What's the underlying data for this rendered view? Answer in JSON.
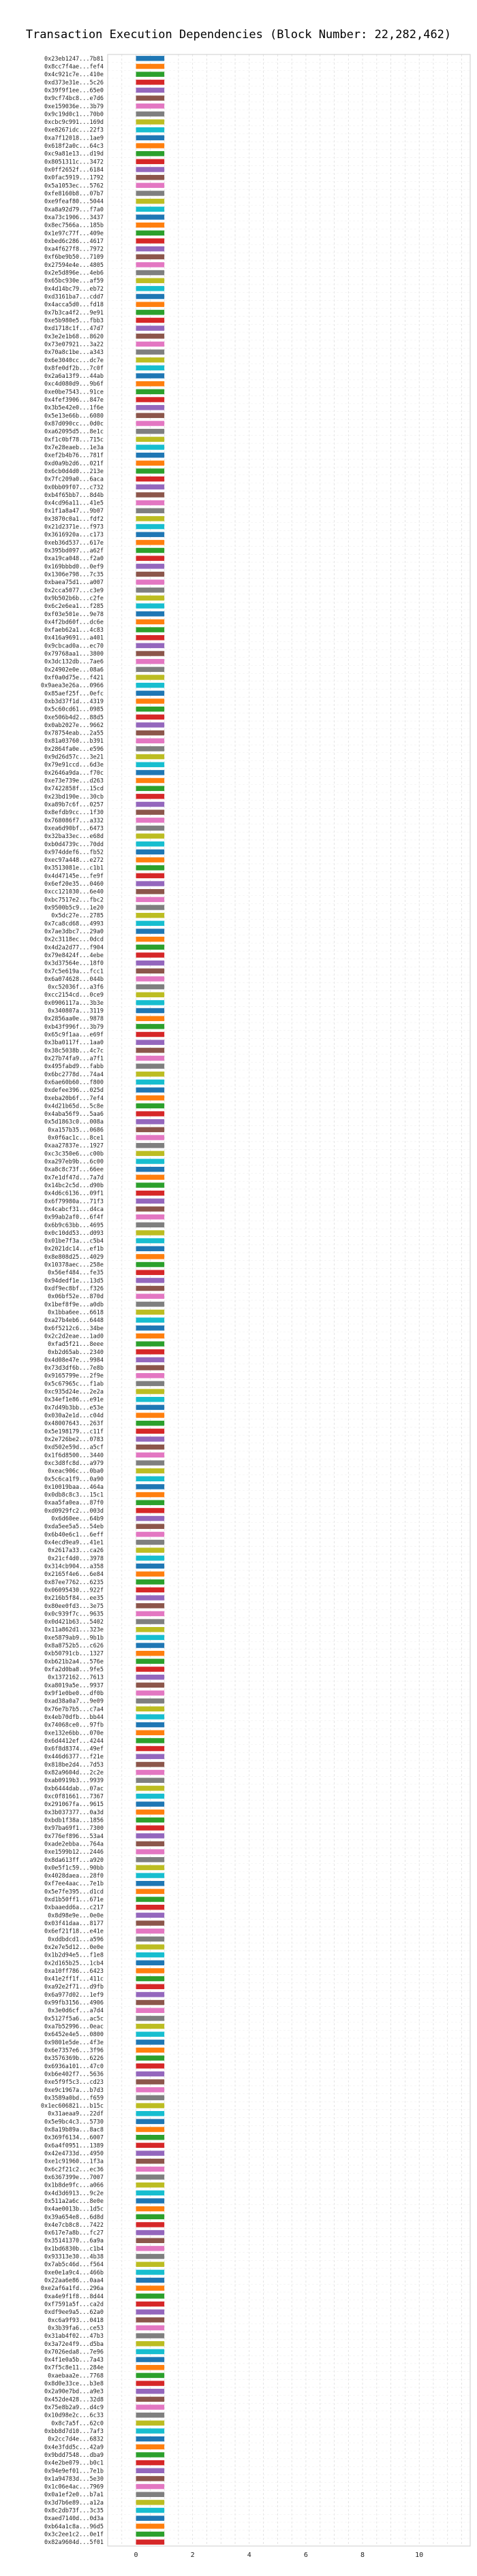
{
  "chart_data": {
    "type": "bar",
    "orientation": "horizontal",
    "stacked": false,
    "title": "Transaction Execution Dependencies (Block Number: 22,282,462)",
    "xlabel": "",
    "ylabel": "",
    "xlim": [
      -1,
      11.8
    ],
    "xticks": [
      0,
      2,
      4,
      6,
      8,
      10
    ],
    "grid": true,
    "legend": "none",
    "colors": [
      "#1f77b4",
      "#ff7f0e",
      "#2ca02c",
      "#d62728",
      "#9467bd",
      "#8c564b",
      "#e377c2",
      "#7f7f7f",
      "#bcbd22",
      "#17becf"
    ],
    "categories": [
      "0x23eb1247...7b81",
      "0x8cc7f4ae...fef4",
      "0x4c921c7e...410e",
      "0xd373e31e...5c26",
      "0x39f9f1ee...65e0",
      "0x9cf74bc8...e7d6",
      "0xe159036e...3b79",
      "0x9c19d0c1...70b0",
      "0xcbc9c991...169d",
      "0xe8267idc...22f3",
      "0xa7f12018...1ae9",
      "0x618f2a0c...64c3",
      "0xc9a81e13...d19d",
      "0x8051311c...3472",
      "0x0ff2652f...6184",
      "0x0fac5919...1792",
      "0x5a1053ec...5762",
      "0xfe8160b8...07b7",
      "0xe9feaf80...5044",
      "0xa8a92d79...f7a0",
      "0xa73c1906...3437",
      "0x8ec7566a...185b",
      "0x1e97c77f...409e",
      "0xbed6c286...4617",
      "0xa4f627f8...7972",
      "0xf6be9b50...7109",
      "0x27594e4e...4805",
      "0x2e5d896e...4eb6",
      "0x65bc930e...af59",
      "0x4d14bc79...eb72",
      "0xd3161ba7...cdd7",
      "0x4acca5d0...fd18",
      "0x7b3ca4f2...9e91",
      "0xe5b980e5...fbb3",
      "0xd1718c1f...47d7",
      "0x3e2e1b68...8620",
      "0x73e07921...3a22",
      "0x70a8c1be...a343",
      "0x6e3040cc...dc7e",
      "0x8fe0df2b...7c0f",
      "0x2a6a13f9...44ab",
      "0xc4d080d9...9b6f",
      "0xe0be7543...91ce",
      "0x4fef3906...847e",
      "0x3b5e42e0...1f6e",
      "0x5e13e66b...6080",
      "0x87d090cc...0d0c",
      "0xa62095d5...8e1c",
      "0xf1c0bf78...715c",
      "0x7e28eaeb...1e3a",
      "0xef2b4b76...781f",
      "0xd0a9b2d6...021f",
      "0x6cb0d4d0...213e",
      "0x7fc209a0...6aca",
      "0x0bb09f07...c732",
      "0xb4f65bb7...8d4b",
      "0x4cd96a11...41e5",
      "0x1f1a8a47...9b07",
      "0x3870c0a1...fdf2",
      "0x21d2371e...f973",
      "0x3616920a...c173",
      "0xeb36d537...617e",
      "0x395bd097...a62f",
      "0xa19ca048...f2a0",
      "0x169bbbd0...0ef9",
      "0x1306e798...7c35",
      "0xbaea75d1...a007",
      "0x2cca5077...c3e9",
      "0x9b502b6b...c2fe",
      "0x6c2e6ea1...f285",
      "0xf03e501e...9e78",
      "0x4f2bd60f...dc6e",
      "0xfaeb62a1...4c83",
      "0x416a9691...a401",
      "0x9cbcad0a...ec70",
      "0x79768aa1...3800",
      "0x3dc132db...7ae6",
      "0x24902e0e...08a6",
      "0xf0a0d75e...f421",
      "0x9aea3e26a...0966",
      "0x85aef25f...0efc",
      "0xb3d37f1d...4319",
      "0x5c60cd61...0985",
      "0xe506b4d2...88d5",
      "0x0ab2027e...9662",
      "0x78754eab...2a55",
      "0x81a03760...b391",
      "0x2864fa0e...e596",
      "0x9d26d57c...3e21",
      "0x79e91ccd...6d3e",
      "0x2646a9da...f70c",
      "0xe73e739e...d263",
      "0x7422858f...15cd",
      "0x23bd190e...30cb",
      "0xa89b7c6f...0257",
      "0x8efdb9cc...1f30",
      "0x768086f7...a332",
      "0xea6d90bf...6473",
      "0x32ba33ec...e68d",
      "0xb0d4739c...70dd",
      "0x974ddef6...fb52",
      "0xec97a448...e272",
      "0x3513081e...c1b1",
      "0x4d47145e...fe9f",
      "0x6ef20e35...0460",
      "0xcc121030...6e40",
      "0xbc7517e2...fbc2",
      "0x9500b5c9...1e20",
      "0x5dc27e...2785",
      "0x7ca8cd68...4993",
      "0x7ae3dbc7...29a0",
      "0x2c3118ec...0dcd",
      "0x4d2a2d77...f904",
      "0x79e8424f...4ebe",
      "0x3d37564e...18f0",
      "0x7c5e619a...fcc1",
      "0x6a074628...044b",
      "0xc52036f...a3f6",
      "0xcc2154cd...0ce9",
      "0x0906117a...3b3e",
      "0x340807a...3119",
      "0x2856aa0e...9878",
      "0xb43f996f...3b79",
      "0x65c9f1aa...e69f",
      "0x3ba0117f...1aa0",
      "0x38c5038b...4c7c",
      "0x27b74fa9...a7f1",
      "0x495fabd9...fabb",
      "0x6bc2778d...74a4",
      "0x6ae60b60...f800",
      "0xdefee396...025d",
      "0xeba20b6f...7ef4",
      "0x4d21b65d...5c8e",
      "0x4aba56f9...5aa6",
      "0x5d1863c0...008a",
      "0xa157b35...0686",
      "0x0f6ac1c...8ce1",
      "0xaa27837e...1927",
      "0xc3c350e6...c00b",
      "0xa297eb9b...6c00",
      "0xa8c8c73f...66ee",
      "0x7e1df47d...7a7d",
      "0x14bc2c5d...d90b",
      "0x4d6c6136...09f1",
      "0x6f79980a...71f3",
      "0x4cabcf31...d4ca",
      "0x99ab2af0...6f4f",
      "0x6b9c63bb...4695",
      "0x0c10dd53...d093",
      "0x01be7f3a...c5b4",
      "0x2021dc14...ef1b",
      "0x8e808d25...4029",
      "0x10378aec...258e",
      "0x56ef484...fe35",
      "0x94dedf1e...13d5",
      "0xdf9ec8bf...f326",
      "0x06bf52e...870d",
      "0x1bef8f9e...a0db",
      "0x1bba6ee...6618",
      "0xa27b4eb6...6448",
      "0x6f5212c6...34be",
      "0x2c2d2eae...1ad0",
      "0xfad5f21...8eee",
      "0xb2d65ab...2340",
      "0x4d08e47e...9984",
      "0x73d3df6b...7e8b",
      "0x9165799e...2f9e",
      "0x5c67965c...f1ab",
      "0xc935d24e...2e2a",
      "0x34ef1e86...e91e",
      "0x7d49b3bb...e53e",
      "0x030a2e1d...c04d",
      "0x48007643...263f",
      "0x5e198179...c11f",
      "0x2e726be2...0783",
      "0xd502e59d...a5cf",
      "0x1f6d8500...3440",
      "0xc3d8fc8d...a979",
      "0xeac906c...0ba0",
      "0x5c6ca1f9...0a90",
      "0x10019baa...464a",
      "0x0db8c8c3...15c1",
      "0xaa5fa0ea...87f0",
      "0xd0929fc2...003d",
      "0x6d60ee...64b9",
      "0xda5ee5a5...54eb",
      "0x6b40e6c1...6eff",
      "0x4ecd9ea9...41e1",
      "0x2617a33...ca26",
      "0x21cf4d0...3978",
      "0x314cb904...a358",
      "0x2165f4e6...6e84",
      "0x87ee7762...6235",
      "0x06095430...922f",
      "0x216b5f84...ee35",
      "0x80ee0fd3...3e75",
      "0x0c939f7c...9635",
      "0x0d421b63...5402",
      "0x11a862d1...323e",
      "0xe5879ab9...9b1b",
      "0x8a8752b5...c626",
      "0xb50791cb...1327",
      "0xb621b2a4...576e",
      "0xfa2d0ba8...9fe5",
      "0x1372162...7613",
      "0xa8019a5e...9937",
      "0x9f1e0be0...df0b",
      "0xad38a0a7...9e09",
      "0x76e7b7b5...c7a4",
      "0x4eb70dfb...bb44",
      "0x74068ce0...97fb",
      "0xe132e6bb...070e",
      "0x6d4412ef...4244",
      "0x6f8d8374...49ef",
      "0x446d6377...f21e",
      "0x818be2d4...7d53",
      "0x82a9604d...2c2e",
      "0xab0919b3...9939",
      "0xb6444dab...07ac",
      "0xc0f81661...7367",
      "0x291067fa...9615",
      "0x3b037377...0a3d",
      "0xbdb1f38a...1856",
      "0x97ba69f1...7300",
      "0x776ef896...53a4",
      "0xade2ebba...764a",
      "0xe1599b12...2446",
      "0x8da613ff...a920",
      "0x0e5f1c59...90bb",
      "0x4028daea...28f0",
      "0xf7ee4aac...7e1b",
      "0x5e7fe395...d1cd",
      "0xd1b50ff1...671e",
      "0xbaaedd6a...c217",
      "0x8d98e9e...0e0e",
      "0x03f41daa...8177",
      "0x6ef21f18...e41e",
      "0xddbdcd1...a596",
      "0x2e7e5d12...0e0e",
      "0x1b2d94e5...f1e8",
      "0x2d165b25...1cb4",
      "0xa10ff786...6423",
      "0x41e2ff1f...411c",
      "0xa92e2f71...d9fb",
      "0x6a977d02...1ef9",
      "0x99fb3156...4906",
      "0x3e0d6cf...a7d4",
      "0x5127f5a6...ac5c",
      "0xa7b52996...0eac",
      "0x6452e4e5...0800",
      "0x9801e5de...4f3e",
      "0x6e7357e6...3f96",
      "0x3576369b...6226",
      "0x6936a101...47c0",
      "0xb6e402f7...5636",
      "0xe5f9f5c3...cd23",
      "0xe9c1967a...b7d3",
      "0x3589a0bd...f659",
      "0x1ec606821...b15c",
      "0x31aeaa9...22df",
      "0x5e9bc4c3...5730",
      "0x8a19b89a...8ac8",
      "0x369f6134...6007",
      "0x6a4f0951...1389",
      "0x42e4733d...4950",
      "0xe1c91960...1f3a",
      "0x6c2f21c2...ec36",
      "0x6367399e...7007",
      "0x1b8de9fc...a066",
      "0x4d3d6913...9c2e",
      "0x511a2a6c...8e0e",
      "0x4ae0013b...1d5c",
      "0x39a654e8...6d8d",
      "0x4e7cb8c8...7422",
      "0x617e7a8b...fc27",
      "0x35141370...6a9a",
      "0x1bd6830b...c1b4",
      "0x93313e30...4b38",
      "0x7ab5c46d...f564",
      "0xe0e1a9c4...466b",
      "0x22aa6e86...0aa4",
      "0xe2af6a1fd...296a",
      "0xa4e9f1f8...8d44",
      "0xf7591a5f...ca2d",
      "0xdf9ee9a5...62a0",
      "0xc6a9f93...0418",
      "0x3b39fa6...ce53",
      "0x31ab4f02...47b3",
      "0x3a72e4f9...d5ba",
      "0x7026eda8...7e96",
      "0x4f1e0a5b...7a43",
      "0x7f5c8e11...284e",
      "0xaebaa2e...7768",
      "0x8d0e33ce...b3e8",
      "0x2a90e7bd...a9e3",
      "0x452de428...32d8",
      "0x75e8b2a9...d4c9",
      "0x10d98e2c...6c33",
      "0x8c7a5f...62c0",
      "0xbb8d7d10...7af3",
      "0x2cc7d4e...6832",
      "0x4e3fdd5c...42a9",
      "0x9bdd7548...dba9",
      "0x4e2be079...b0c1",
      "0x94e9ef01...7e1b",
      "0x1a94783d...5e30",
      "0x1c06e4ac...7969",
      "0x0a1ef2e0...b7a1",
      "0x3d7b6e89...a12a",
      "0x8c2db73f...3c35",
      "0xaed7140d...0d3a",
      "0xb64a1c8a...96d5",
      "0x3c2ee1c2...0e1f",
      "0x82a9604d...5f01"
    ],
    "series_values": []
  }
}
